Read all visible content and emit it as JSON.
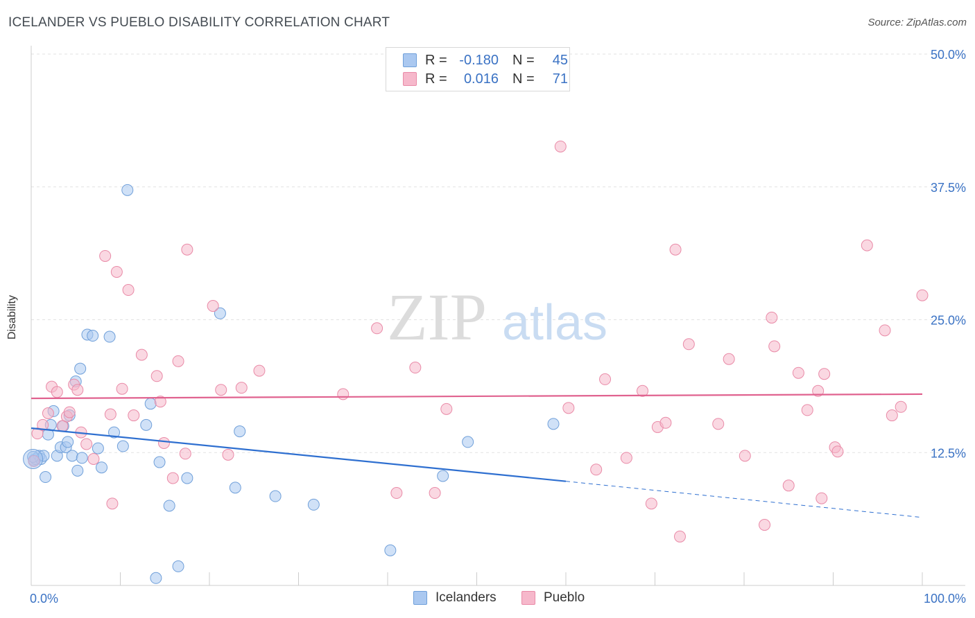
{
  "header": {
    "title": "ICELANDER VS PUEBLO DISABILITY CORRELATION CHART",
    "source": "Source: ZipAtlas.com"
  },
  "watermark": {
    "zip": "ZIP",
    "atlas": "atlas"
  },
  "legend": {
    "rows": [
      {
        "r_label": "R =",
        "r_value": "-0.180",
        "n_label": "N =",
        "n_value": "45",
        "color": "#aac8f0",
        "border": "#6f9fd9"
      },
      {
        "r_label": "R =",
        "r_value": "0.016",
        "n_label": "N =",
        "n_value": "71",
        "color": "#f6b8cb",
        "border": "#e98aa7"
      }
    ]
  },
  "bottom_legend": [
    {
      "label": "Icelanders",
      "color": "#aac8f0",
      "border": "#6f9fd9"
    },
    {
      "label": "Pueblo",
      "color": "#f6b8cb",
      "border": "#e98aa7"
    }
  ],
  "chart_data": {
    "type": "scatter",
    "title": "ICELANDER VS PUEBLO DISABILITY CORRELATION CHART",
    "xlabel": "",
    "ylabel": "Disability",
    "xlim": [
      0,
      100
    ],
    "ylim": [
      0,
      50
    ],
    "x_tick_labels": [
      "0.0%",
      "100.0%"
    ],
    "y_ticks": [
      12.5,
      25.0,
      37.5,
      50.0
    ],
    "y_tick_labels": [
      "12.5%",
      "25.0%",
      "37.5%",
      "50.0%"
    ],
    "grid": "horizontal dashed",
    "series": [
      {
        "name": "Icelanders",
        "color": "#6f9fd9",
        "fill": "#aac8f0",
        "trend": {
          "x": [
            0,
            60
          ],
          "y": [
            14.8,
            9.8
          ],
          "dashed_to": [
            100,
            6.4
          ],
          "color": "#2e6fd0"
        },
        "points": [
          [
            0.3,
            11.8
          ],
          [
            0.5,
            11.9
          ],
          [
            0.9,
            12.2
          ],
          [
            1.1,
            11.9
          ],
          [
            1.4,
            12.2
          ],
          [
            1.6,
            10.2
          ],
          [
            1.9,
            14.2
          ],
          [
            2.2,
            15.1
          ],
          [
            2.5,
            16.4
          ],
          [
            2.9,
            12.2
          ],
          [
            3.3,
            13.0
          ],
          [
            3.6,
            15.0
          ],
          [
            3.9,
            13.0
          ],
          [
            4.1,
            13.5
          ],
          [
            4.3,
            16.0
          ],
          [
            4.6,
            12.2
          ],
          [
            5.0,
            19.2
          ],
          [
            5.2,
            10.8
          ],
          [
            5.5,
            20.4
          ],
          [
            5.7,
            12.0
          ],
          [
            6.3,
            23.6
          ],
          [
            6.9,
            23.5
          ],
          [
            7.5,
            12.9
          ],
          [
            7.9,
            11.1
          ],
          [
            8.8,
            23.4
          ],
          [
            9.3,
            14.4
          ],
          [
            10.3,
            13.1
          ],
          [
            10.8,
            37.2
          ],
          [
            12.9,
            15.1
          ],
          [
            13.4,
            17.1
          ],
          [
            14.0,
            0.7
          ],
          [
            14.4,
            11.6
          ],
          [
            15.5,
            7.5
          ],
          [
            16.5,
            1.8
          ],
          [
            17.5,
            10.1
          ],
          [
            21.2,
            25.6
          ],
          [
            22.9,
            9.2
          ],
          [
            23.4,
            14.5
          ],
          [
            27.4,
            8.4
          ],
          [
            31.7,
            7.6
          ],
          [
            40.3,
            3.3
          ],
          [
            46.2,
            10.3
          ],
          [
            49.0,
            13.5
          ],
          [
            58.6,
            15.2
          ],
          [
            0.2,
            12.1
          ]
        ]
      },
      {
        "name": "Pueblo",
        "color": "#e98aa7",
        "fill": "#f6b8cb",
        "trend": {
          "x": [
            0,
            100
          ],
          "y": [
            17.6,
            18.0
          ],
          "color": "#e0628f"
        },
        "points": [
          [
            0.3,
            11.7
          ],
          [
            0.7,
            14.3
          ],
          [
            1.3,
            15.1
          ],
          [
            1.9,
            16.2
          ],
          [
            2.3,
            18.7
          ],
          [
            2.9,
            18.2
          ],
          [
            3.5,
            15.0
          ],
          [
            4.0,
            15.9
          ],
          [
            4.3,
            16.3
          ],
          [
            4.8,
            18.9
          ],
          [
            5.2,
            18.4
          ],
          [
            5.6,
            14.4
          ],
          [
            6.2,
            13.3
          ],
          [
            7.0,
            11.9
          ],
          [
            8.3,
            31.0
          ],
          [
            8.9,
            16.1
          ],
          [
            9.1,
            7.7
          ],
          [
            9.6,
            29.5
          ],
          [
            10.2,
            18.5
          ],
          [
            10.9,
            27.8
          ],
          [
            11.5,
            16.0
          ],
          [
            12.4,
            21.7
          ],
          [
            14.1,
            19.7
          ],
          [
            14.5,
            17.3
          ],
          [
            14.9,
            13.4
          ],
          [
            15.9,
            10.1
          ],
          [
            16.5,
            21.1
          ],
          [
            17.3,
            12.4
          ],
          [
            17.5,
            31.6
          ],
          [
            20.4,
            26.3
          ],
          [
            21.3,
            18.4
          ],
          [
            22.1,
            12.3
          ],
          [
            23.6,
            18.6
          ],
          [
            25.6,
            20.2
          ],
          [
            35.0,
            18.0
          ],
          [
            38.8,
            24.2
          ],
          [
            41.0,
            8.7
          ],
          [
            43.1,
            20.5
          ],
          [
            45.3,
            8.7
          ],
          [
            46.6,
            16.6
          ],
          [
            59.4,
            41.3
          ],
          [
            60.3,
            16.7
          ],
          [
            63.4,
            10.9
          ],
          [
            64.4,
            19.4
          ],
          [
            66.8,
            12.0
          ],
          [
            68.6,
            18.3
          ],
          [
            69.6,
            7.7
          ],
          [
            70.3,
            14.9
          ],
          [
            71.2,
            15.3
          ],
          [
            72.3,
            31.6
          ],
          [
            72.8,
            4.6
          ],
          [
            73.8,
            22.7
          ],
          [
            77.1,
            15.2
          ],
          [
            78.3,
            21.3
          ],
          [
            80.1,
            12.2
          ],
          [
            82.3,
            5.7
          ],
          [
            83.1,
            25.2
          ],
          [
            83.4,
            22.5
          ],
          [
            85.0,
            9.4
          ],
          [
            86.1,
            20.0
          ],
          [
            87.1,
            16.5
          ],
          [
            88.3,
            18.3
          ],
          [
            88.7,
            8.2
          ],
          [
            89.0,
            19.9
          ],
          [
            90.2,
            13.0
          ],
          [
            90.5,
            12.6
          ],
          [
            93.8,
            32.0
          ],
          [
            95.8,
            24.0
          ],
          [
            96.6,
            16.0
          ],
          [
            97.6,
            16.8
          ],
          [
            100.0,
            27.3
          ]
        ]
      }
    ]
  }
}
